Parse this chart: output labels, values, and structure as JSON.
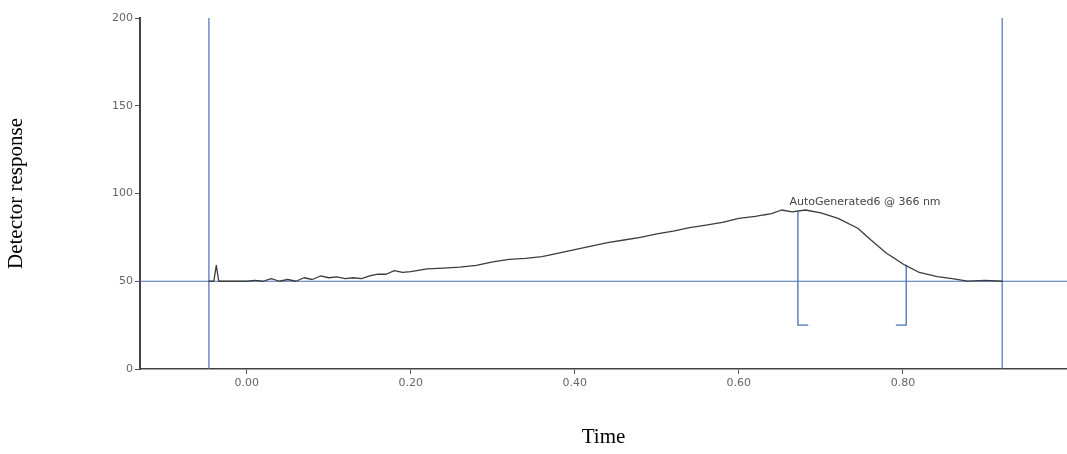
{
  "chart_data": {
    "type": "line",
    "xlabel": "Time",
    "ylabel": "Detector response",
    "xlim": [
      -0.13,
      1.0
    ],
    "ylim": [
      0,
      200
    ],
    "xticks": [
      {
        "value": 0,
        "label": "0.00"
      },
      {
        "value": 0.2,
        "label": "0.20"
      },
      {
        "value": 0.4,
        "label": "0.40"
      },
      {
        "value": 0.6,
        "label": "0.60"
      },
      {
        "value": 0.8,
        "label": "0.80"
      }
    ],
    "yticks": [
      0,
      50,
      100,
      150,
      200
    ],
    "grid": false,
    "legend": false,
    "marker": "none",
    "line_style": "solid",
    "series": [
      {
        "color": "#3c3c3c",
        "x": [
          -0.046,
          -0.04,
          -0.037,
          -0.034,
          -0.03,
          0.0,
          0.01,
          0.02,
          0.03,
          0.04,
          0.05,
          0.06,
          0.07,
          0.08,
          0.09,
          0.1,
          0.11,
          0.12,
          0.13,
          0.14,
          0.15,
          0.16,
          0.17,
          0.18,
          0.19,
          0.2,
          0.22,
          0.24,
          0.26,
          0.28,
          0.3,
          0.32,
          0.34,
          0.36,
          0.38,
          0.4,
          0.42,
          0.44,
          0.46,
          0.48,
          0.5,
          0.52,
          0.54,
          0.56,
          0.58,
          0.6,
          0.62,
          0.64,
          0.652,
          0.665,
          0.681,
          0.7,
          0.721,
          0.745,
          0.761,
          0.78,
          0.802,
          0.82,
          0.842,
          0.86,
          0.879,
          0.9,
          0.921
        ],
        "values": [
          50,
          50,
          59,
          50,
          50,
          50,
          50.5,
          50,
          51.5,
          50,
          51,
          50,
          52,
          51,
          53,
          52,
          52.5,
          51.5,
          52,
          51.5,
          53,
          54,
          54,
          56,
          55,
          55.5,
          57,
          57.5,
          58,
          59,
          61,
          62.5,
          63,
          64,
          66,
          68,
          70,
          72,
          73.5,
          75,
          77,
          78.5,
          80.5,
          82,
          83.5,
          85.8,
          87,
          88.5,
          90.6,
          89.5,
          90.6,
          89,
          85.8,
          80.2,
          73.5,
          66,
          59.3,
          55,
          52.6,
          51.5,
          50.1,
          50.5,
          50
        ]
      },
      {
        "color": "#4a6fb5",
        "x": [
          0.672,
          0.672,
          0.684
        ],
        "values": [
          90,
          25,
          25
        ]
      },
      {
        "color": "#4a6fb5",
        "x": [
          0.792,
          0.804,
          0.804
        ],
        "values": [
          25,
          25,
          59
        ]
      }
    ],
    "ref_lines": [
      {
        "axis": "x",
        "value": -0.046,
        "color": "#4a6fb5"
      },
      {
        "axis": "x",
        "value": 0.921,
        "color": "#4a6fb5"
      },
      {
        "axis": "y",
        "value": 50,
        "color": "#4a6fb5"
      }
    ],
    "annotations": [
      "AutoGenerated6 @ 366 nm"
    ]
  }
}
